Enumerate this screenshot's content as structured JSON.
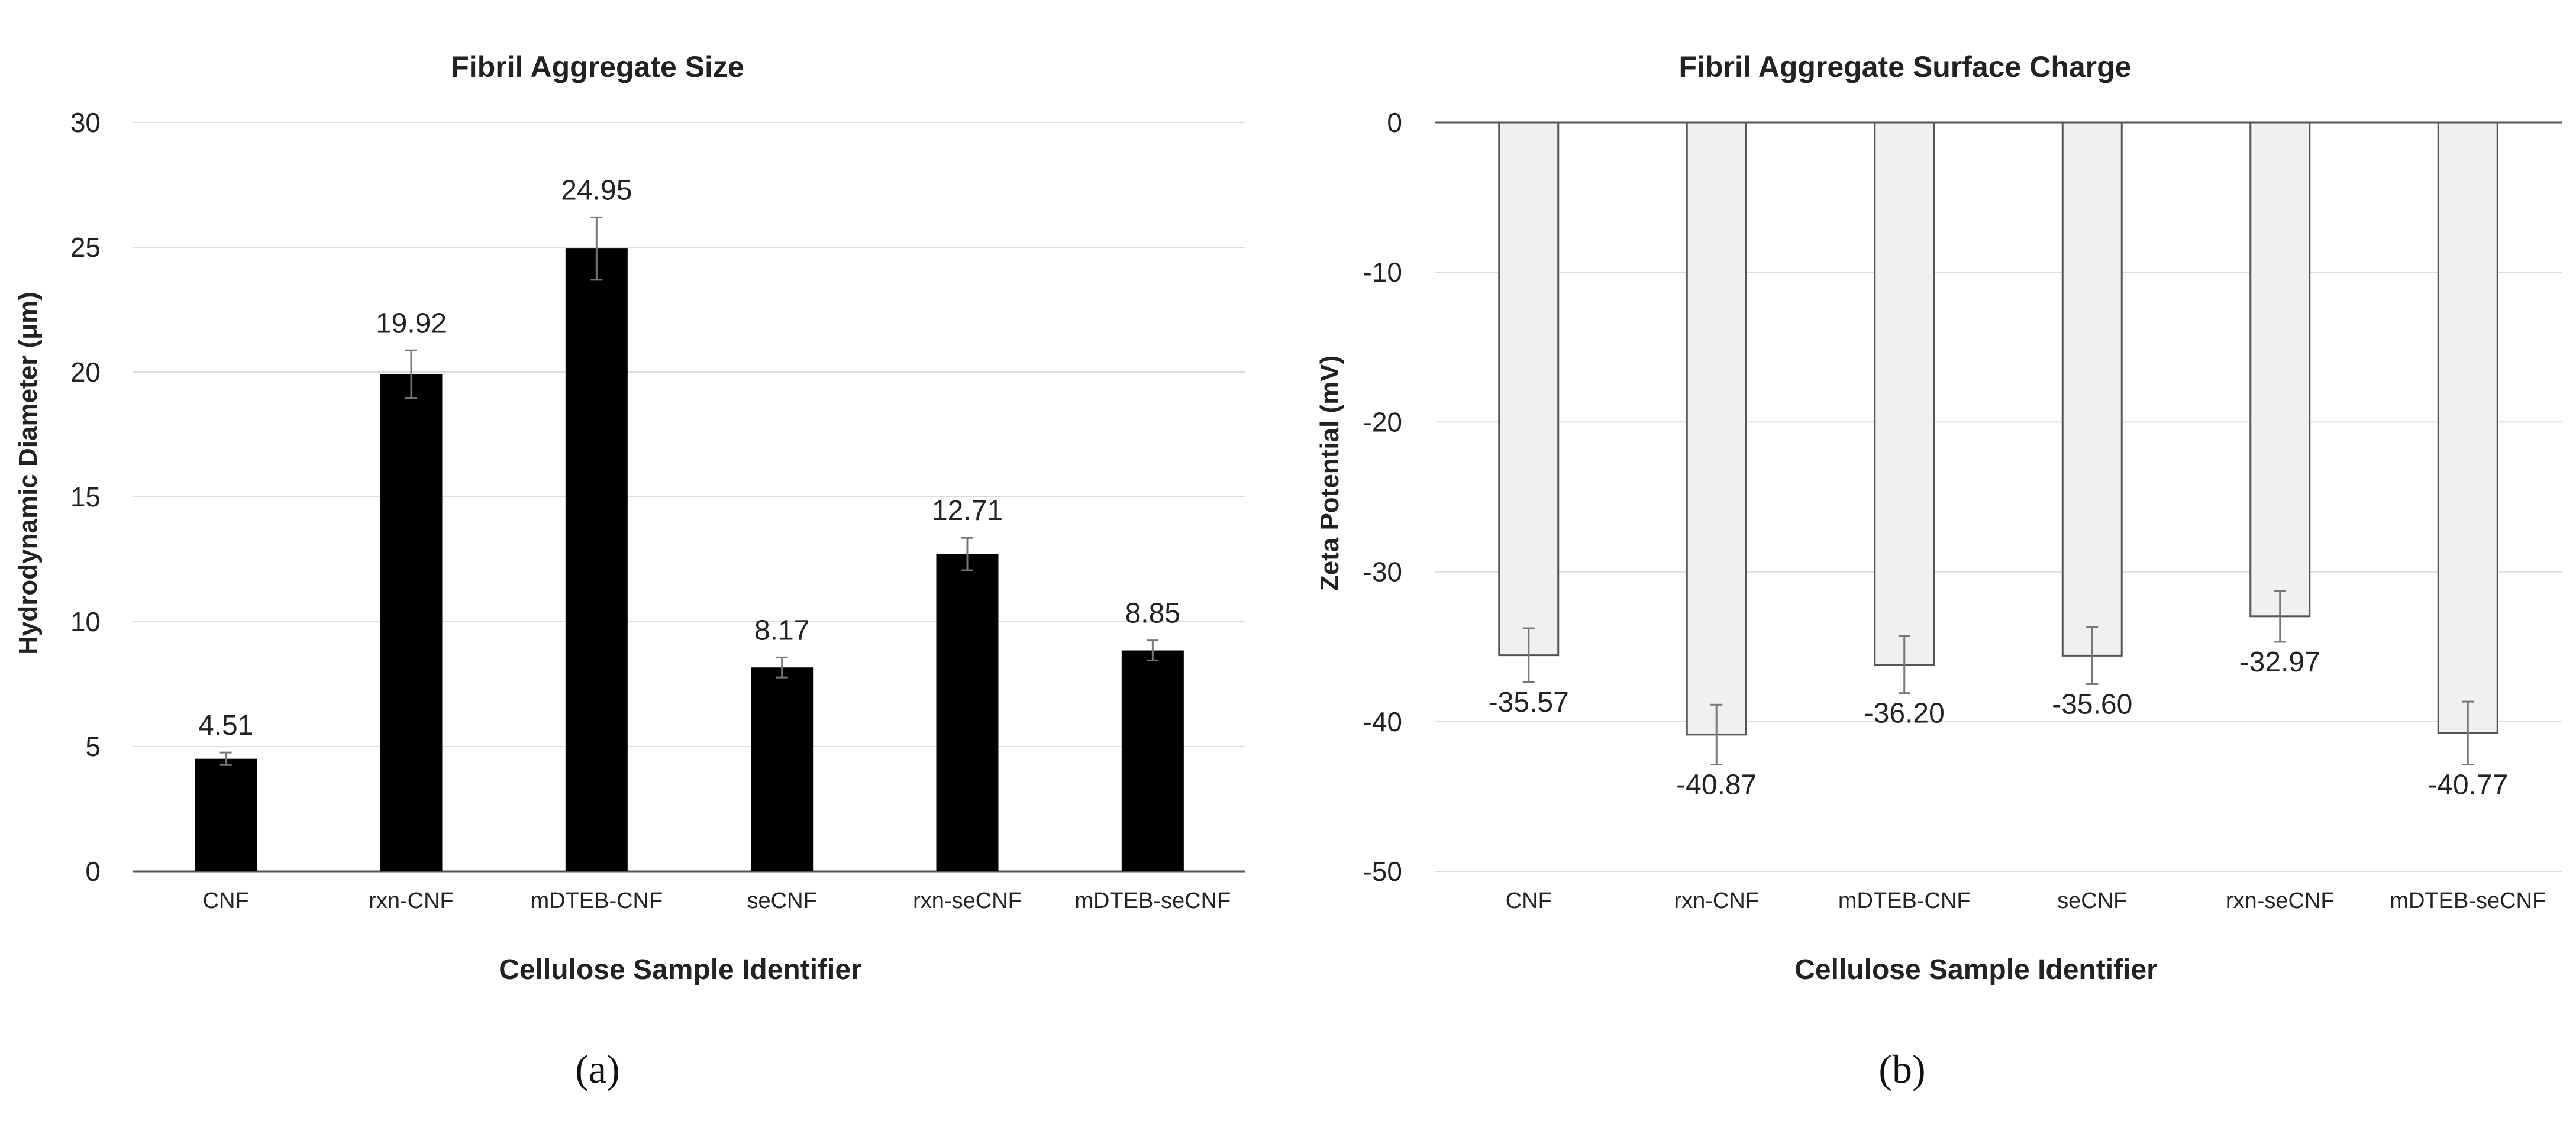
{
  "chart_data": [
    {
      "type": "bar",
      "panel_label": "(a)",
      "title": "Fibril Aggregate Size",
      "xlabel": "Cellulose Sample Identifier",
      "ylabel": "Hydrodynamic Diameter (μm)",
      "categories": [
        "CNF",
        "rxn-CNF",
        "mDTEB-CNF",
        "seCNF",
        "rxn-seCNF",
        "mDTEB-seCNF"
      ],
      "values": [
        4.51,
        19.92,
        24.95,
        8.17,
        12.71,
        8.85
      ],
      "value_labels": [
        "4.51",
        "19.92",
        "24.95",
        "8.17",
        "12.71",
        "8.85"
      ],
      "errors": [
        0.25,
        0.95,
        1.25,
        0.4,
        0.65,
        0.4
      ],
      "ylim": [
        0,
        30
      ],
      "yticks": [
        0,
        5,
        10,
        15,
        20,
        25,
        30
      ],
      "grid": true,
      "bar_color": "#000000"
    },
    {
      "type": "bar",
      "panel_label": "(b)",
      "title": "Fibril Aggregate Surface Charge",
      "xlabel": "Cellulose Sample Identifier",
      "ylabel": "Zeta Potential (mV)",
      "categories": [
        "CNF",
        "rxn-CNF",
        "mDTEB-CNF",
        "seCNF",
        "rxn-seCNF",
        "mDTEB-seCNF"
      ],
      "values": [
        -35.57,
        -40.87,
        -36.2,
        -35.6,
        -32.97,
        -40.77
      ],
      "value_labels": [
        "-35.57",
        "-40.87",
        "-36.20",
        "-35.60",
        "-32.97",
        "-40.77"
      ],
      "errors": [
        1.8,
        2.0,
        1.9,
        1.9,
        1.7,
        2.1
      ],
      "ylim": [
        -50,
        0
      ],
      "yticks": [
        0,
        -10,
        -20,
        -30,
        -40,
        -50
      ],
      "grid": true,
      "bar_color": "#f0f0f0",
      "bar_edge_color": "#555555"
    }
  ]
}
